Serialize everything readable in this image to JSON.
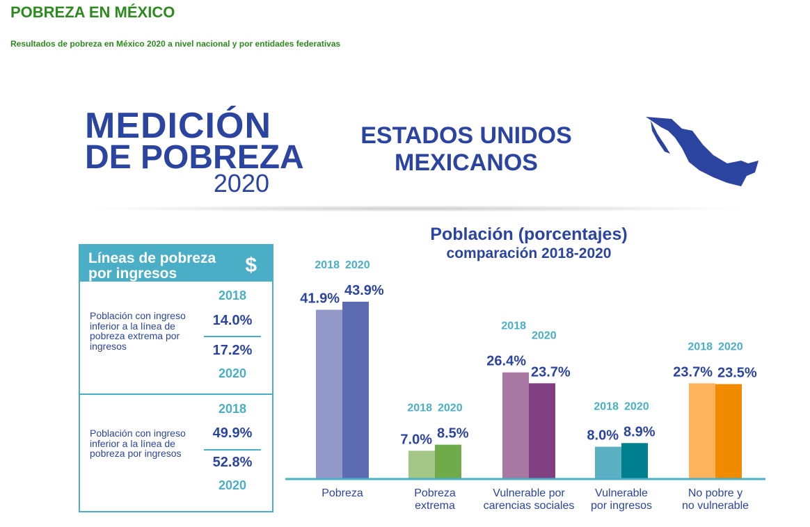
{
  "page": {
    "title": "POBREZA EN MÉXICO",
    "subtitle": "Resultados de pobreza en México 2020 a nivel nacional y por entidades federativas"
  },
  "logo": {
    "line1": "MEDICIÓN",
    "line2": "DE POBREZA",
    "line3": "2020"
  },
  "country": {
    "line1": "ESTADOS UNIDOS",
    "line2": "MEXICANOS"
  },
  "income_box": {
    "title_line1": "Líneas de pobreza",
    "title_line2": "por ingresos",
    "icon": "dollar-icon",
    "icon_text": "$",
    "rows": [
      {
        "description": "Población con ingreso inferior a la línea de pobreza extrema por ingresos",
        "year1": "2018",
        "value1": "14.0%",
        "value2": "17.2%",
        "year2": "2020"
      },
      {
        "description": "Población con ingreso inferior a la línea de pobreza por ingresos",
        "year1": "2018",
        "value1": "49.9%",
        "value2": "52.8%",
        "year2": "2020"
      }
    ]
  },
  "chart_data": {
    "type": "bar",
    "title": "Población (porcentajes)",
    "subtitle": "comparación 2018-2020",
    "categories": [
      "Pobreza",
      "Pobreza\nextrema",
      "Vulnerable por\ncarencias sociales",
      "Vulnerable\npor ingresos",
      "No pobre y\nno vulnerable"
    ],
    "series": [
      {
        "name": "2018",
        "values": [
          41.9,
          7.0,
          26.4,
          8.0,
          23.7
        ]
      },
      {
        "name": "2020",
        "values": [
          43.9,
          8.5,
          23.7,
          8.9,
          23.5
        ]
      }
    ],
    "colors": [
      [
        "#9399c9",
        "#5d6cb2"
      ],
      [
        "#a3c585",
        "#6faa4b"
      ],
      [
        "#a878a3",
        "#7f3f80"
      ],
      [
        "#5bb1c3",
        "#00808f"
      ],
      [
        "#fdb35c",
        "#f08b00"
      ]
    ],
    "ylim": [
      0,
      45
    ],
    "legend": "per-bar year labels"
  }
}
